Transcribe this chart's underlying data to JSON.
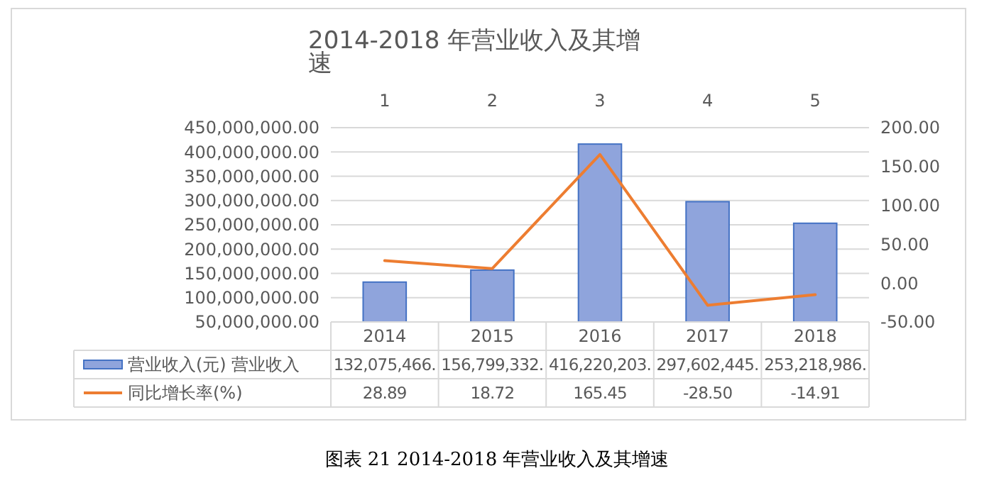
{
  "chart_data": {
    "type": "bar",
    "title": "2014-2018 年营业收入及其增速",
    "categories": [
      "2014",
      "2015",
      "2016",
      "2017",
      "2018"
    ],
    "series": [
      {
        "name": "营业收入(元) 营业收入",
        "color": "#8fa4dc",
        "values": [
          132075466,
          156799332,
          416220203,
          297602445,
          253218986
        ],
        "value_labels": [
          "132,075,466.",
          "156,799,332.",
          "416,220,203.",
          "297,602,445.",
          "253,218,986."
        ]
      },
      {
        "name": "同比增长率(%)",
        "type": "line",
        "axis": "y2",
        "color": "#ed7d31",
        "values": [
          28.89,
          18.72,
          165.45,
          -28.5,
          -14.91
        ],
        "value_labels": [
          "28.89",
          "18.72",
          "165.45",
          "-28.50",
          "-14.91"
        ]
      }
    ],
    "ylim": [
      50000000,
      450000000
    ],
    "yticks": [
      {
        "value": 50000000,
        "label": "50,000,000.00"
      },
      {
        "value": 100000000,
        "label": "100,000,000.00"
      },
      {
        "value": 150000000,
        "label": "150,000,000.00"
      },
      {
        "value": 200000000,
        "label": "200,000,000.00"
      },
      {
        "value": 250000000,
        "label": "250,000,000.00"
      },
      {
        "value": 300000000,
        "label": "300,000,000.00"
      },
      {
        "value": 350000000,
        "label": "350,000,000.00"
      },
      {
        "value": 400000000,
        "label": "400,000,000.00"
      },
      {
        "value": 450000000,
        "label": "450,000,000.00"
      }
    ],
    "y2lim": [
      -50,
      200
    ],
    "y2ticks": [
      {
        "value": -50,
        "label": "-50.00"
      },
      {
        "value": 0,
        "label": "0.00"
      },
      {
        "value": 50,
        "label": "50.00"
      },
      {
        "value": 100,
        "label": "100.00"
      },
      {
        "value": 150,
        "label": "150.00"
      },
      {
        "value": 200,
        "label": "200.00"
      }
    ],
    "x2lim": [
      0.5,
      5.5
    ],
    "x2ticks": [
      1,
      2,
      3,
      4,
      5
    ],
    "grid": "y",
    "legend": "bottom",
    "annotations": [
      "图表 21 2014-2018 年营业收入及其增速"
    ]
  }
}
